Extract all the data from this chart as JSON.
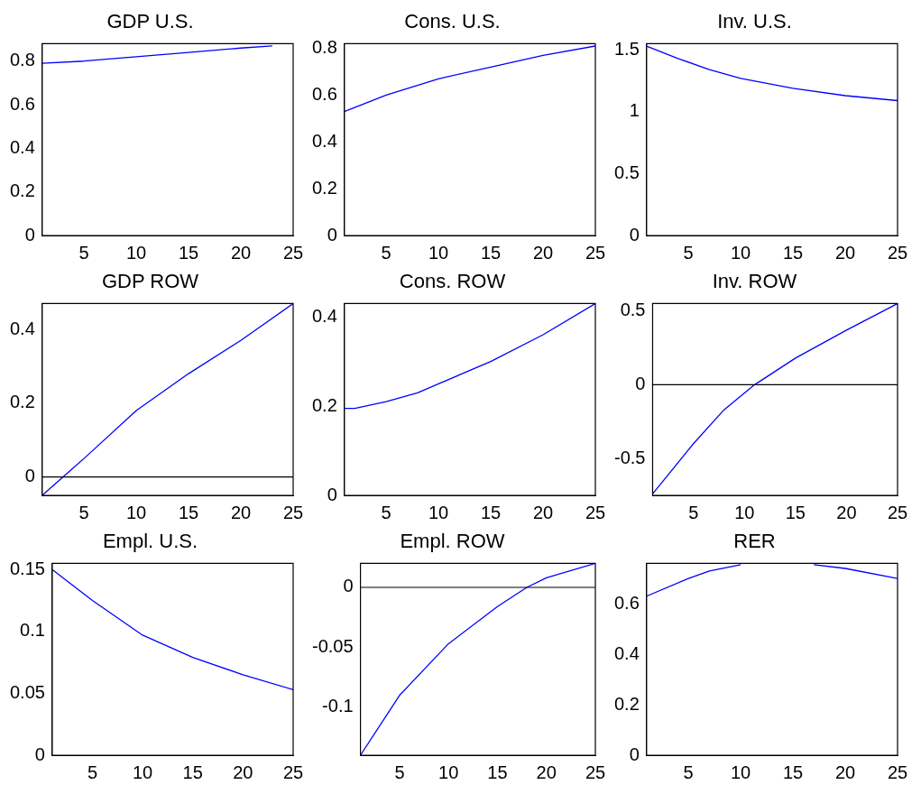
{
  "chart_data": [
    {
      "type": "line",
      "title": "GDP U.S.",
      "x": [
        1,
        5,
        10,
        15,
        20,
        23
      ],
      "series": [
        {
          "color": "#0000ff",
          "values": [
            0.79,
            0.8,
            0.82,
            0.84,
            0.86,
            0.87
          ]
        }
      ],
      "xlim": [
        1,
        25
      ],
      "xticks": [
        5,
        10,
        15,
        20,
        25
      ],
      "ylim": [
        0,
        0.88
      ],
      "yticks": [
        0,
        0.2,
        0.4,
        0.6,
        0.8
      ]
    },
    {
      "type": "line",
      "title": "Cons. U.S.",
      "x": [
        1,
        5,
        10,
        15,
        20,
        25
      ],
      "series": [
        {
          "color": "#0000ff",
          "values": [
            0.53,
            0.6,
            0.67,
            0.72,
            0.77,
            0.81
          ]
        }
      ],
      "xlim": [
        1,
        25
      ],
      "xticks": [
        5,
        10,
        15,
        20,
        25
      ],
      "ylim": [
        0,
        0.82
      ],
      "yticks": [
        0,
        0.2,
        0.4,
        0.6,
        0.8
      ]
    },
    {
      "type": "line",
      "title": "Inv. U.S.",
      "x": [
        1,
        4,
        7,
        10,
        15,
        20,
        25
      ],
      "series": [
        {
          "color": "#0000ff",
          "values": [
            1.53,
            1.43,
            1.34,
            1.27,
            1.19,
            1.13,
            1.09
          ]
        }
      ],
      "xlim": [
        1,
        25
      ],
      "xticks": [
        5,
        10,
        15,
        20,
        25
      ],
      "ylim": [
        0,
        1.55
      ],
      "yticks": [
        0,
        0.5,
        1,
        1.5
      ]
    },
    {
      "type": "line",
      "title": "GDP ROW",
      "x": [
        1,
        3,
        5,
        10,
        15,
        20,
        25
      ],
      "series": [
        {
          "color": "#0000ff",
          "values": [
            -0.05,
            0,
            0.05,
            0.18,
            0.28,
            0.37,
            0.47
          ]
        }
      ],
      "xlim": [
        1,
        25
      ],
      "xticks": [
        5,
        10,
        15,
        20,
        25
      ],
      "ylim": [
        -0.05,
        0.47
      ],
      "yticks": [
        0,
        0.2,
        0.4
      ],
      "ref_lines": [
        {
          "axis": "y",
          "value": 0,
          "color": "#000000"
        }
      ]
    },
    {
      "type": "line",
      "title": "Cons. ROW",
      "x": [
        1,
        2,
        5,
        8,
        10,
        15,
        20,
        25
      ],
      "series": [
        {
          "color": "#0000ff",
          "values": [
            0.195,
            0.195,
            0.21,
            0.23,
            0.25,
            0.3,
            0.36,
            0.43
          ]
        }
      ],
      "xlim": [
        1,
        25
      ],
      "xticks": [
        5,
        10,
        15,
        20,
        25
      ],
      "ylim": [
        0,
        0.43
      ],
      "yticks": [
        0,
        0.2,
        0.4
      ]
    },
    {
      "type": "line",
      "title": "Inv. ROW",
      "x": [
        1,
        5,
        8,
        11,
        15,
        20,
        25
      ],
      "series": [
        {
          "color": "#0000ff",
          "values": [
            -0.74,
            -0.4,
            -0.17,
            0,
            0.18,
            0.37,
            0.55
          ]
        }
      ],
      "xlim": [
        1,
        25
      ],
      "xticks": [
        5,
        10,
        15,
        20,
        25
      ],
      "ylim": [
        -0.75,
        0.55
      ],
      "yticks": [
        -0.5,
        0,
        0.5
      ],
      "ref_lines": [
        {
          "axis": "y",
          "value": 0,
          "color": "#000000"
        }
      ]
    },
    {
      "type": "line",
      "title": "Empl. U.S.",
      "x": [
        1,
        5,
        10,
        15,
        20,
        25
      ],
      "series": [
        {
          "color": "#0000ff",
          "values": [
            0.15,
            0.125,
            0.097,
            0.079,
            0.065,
            0.053
          ]
        }
      ],
      "xlim": [
        1,
        25
      ],
      "xticks": [
        5,
        10,
        15,
        20,
        25
      ],
      "ylim": [
        0,
        0.155
      ],
      "yticks": [
        0,
        0.05,
        0.1,
        0.15
      ]
    },
    {
      "type": "line",
      "title": "Empl. ROW",
      "x": [
        1,
        5,
        10,
        15,
        18,
        20,
        25
      ],
      "series": [
        {
          "color": "#0000ff",
          "values": [
            -0.14,
            -0.09,
            -0.047,
            -0.016,
            0,
            0.008,
            0.02
          ]
        }
      ],
      "xlim": [
        1,
        25
      ],
      "xticks": [
        5,
        10,
        15,
        20,
        25
      ],
      "ylim": [
        -0.14,
        0.02
      ],
      "yticks": [
        -0.1,
        -0.05,
        0
      ],
      "ref_lines": [
        {
          "axis": "y",
          "value": 0,
          "color": "#000000"
        }
      ]
    },
    {
      "type": "line",
      "title": "RER",
      "x": [
        1,
        5,
        7,
        10,
        13,
        17,
        20,
        25
      ],
      "series": [
        {
          "color": "#0000ff",
          "values": [
            0.63,
            0.7,
            0.73,
            0.755,
            null,
            0.755,
            0.74,
            0.7
          ]
        }
      ],
      "xlim": [
        1,
        25
      ],
      "xticks": [
        5,
        10,
        15,
        20,
        25
      ],
      "ylim": [
        0,
        0.76
      ],
      "yticks": [
        0,
        0.2,
        0.4,
        0.6
      ]
    }
  ]
}
